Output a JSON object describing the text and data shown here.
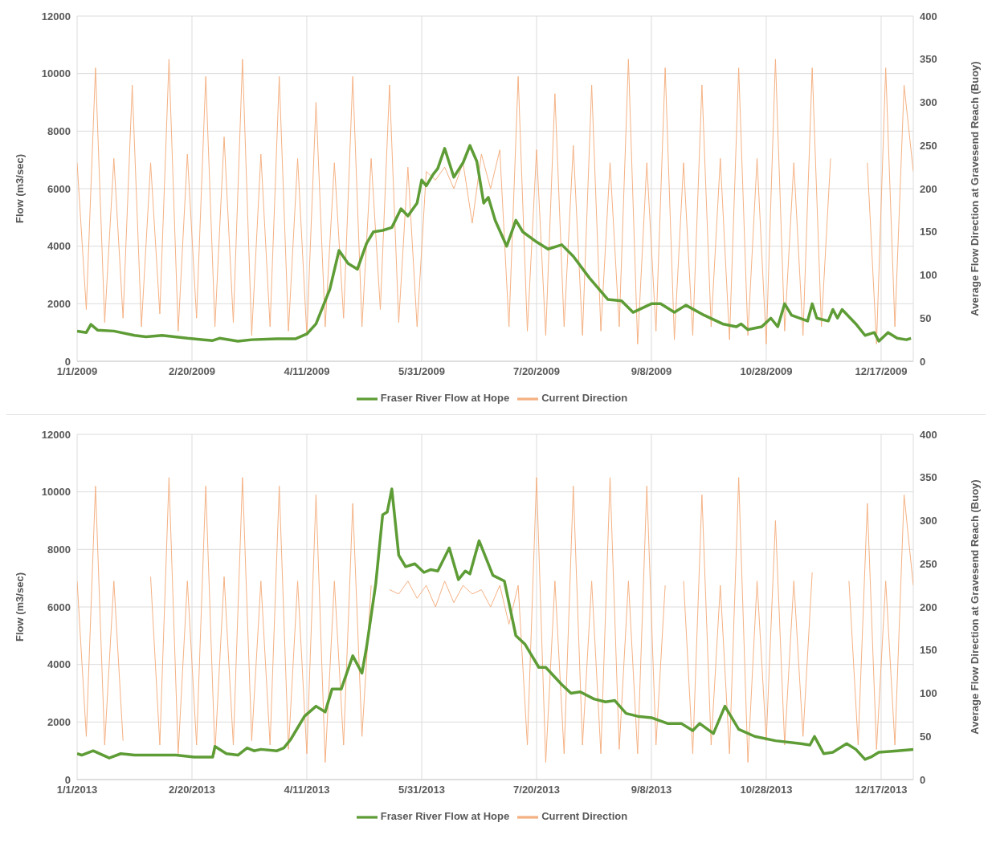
{
  "chart_data": [
    {
      "type": "line",
      "xlabel": null,
      "ylabel": "Flow (m3/sec)",
      "y2label": "Average Flow Direction at Gravesend Reach (Buoy)",
      "xlim": [
        "2009-01-01",
        "2009-12-31"
      ],
      "xticks": [
        {
          "value": "2009-01-01",
          "label": "1/1/2009"
        },
        {
          "value": "2009-02-20",
          "label": "2/20/2009"
        },
        {
          "value": "2009-04-11",
          "label": "4/11/2009"
        },
        {
          "value": "2009-05-31",
          "label": "5/31/2009"
        },
        {
          "value": "2009-07-20",
          "label": "7/20/2009"
        },
        {
          "value": "2009-09-08",
          "label": "9/8/2009"
        },
        {
          "value": "2009-10-28",
          "label": "10/28/2009"
        },
        {
          "value": "2009-12-17",
          "label": "12/17/2009"
        }
      ],
      "ylim": [
        0,
        12000
      ],
      "yticks": [
        0,
        2000,
        4000,
        6000,
        8000,
        10000,
        12000
      ],
      "y2lim": [
        0,
        400
      ],
      "y2ticks": [
        0,
        50,
        100,
        150,
        200,
        250,
        300,
        350,
        400
      ],
      "grid": true,
      "legend": "bottom",
      "series": [
        {
          "name": "Fraser River Flow at Hope",
          "color": "#5e9c36",
          "x": [
            "2009-01-01",
            "2009-01-05",
            "2009-01-07",
            "2009-01-10",
            "2009-01-17",
            "2009-01-26",
            "2009-01-31",
            "2009-02-07",
            "2009-02-18",
            "2009-03-01",
            "2009-03-04",
            "2009-03-12",
            "2009-03-18",
            "2009-03-29",
            "2009-04-06",
            "2009-04-11",
            "2009-04-15",
            "2009-04-21",
            "2009-04-25",
            "2009-04-29",
            "2009-05-03",
            "2009-05-07",
            "2009-05-10",
            "2009-05-14",
            "2009-05-18",
            "2009-05-22",
            "2009-05-25",
            "2009-05-29",
            "2009-05-31",
            "2009-06-02",
            "2009-06-05",
            "2009-06-07",
            "2009-06-10",
            "2009-06-14",
            "2009-06-18",
            "2009-06-21",
            "2009-06-24",
            "2009-06-27",
            "2009-06-29",
            "2009-07-02",
            "2009-07-07",
            "2009-07-11",
            "2009-07-14",
            "2009-07-20",
            "2009-07-25",
            "2009-07-31",
            "2009-08-05",
            "2009-08-12",
            "2009-08-20",
            "2009-08-26",
            "2009-08-31",
            "2009-09-08",
            "2009-09-12",
            "2009-09-18",
            "2009-09-23",
            "2009-10-01",
            "2009-10-09",
            "2009-10-15",
            "2009-10-17",
            "2009-10-20",
            "2009-10-26",
            "2009-10-30",
            "2009-11-02",
            "2009-11-05",
            "2009-11-08",
            "2009-11-15",
            "2009-11-17",
            "2009-11-19",
            "2009-11-24",
            "2009-11-26",
            "2009-11-28",
            "2009-11-30",
            "2009-12-06",
            "2009-12-10",
            "2009-12-14",
            "2009-12-16",
            "2009-12-20",
            "2009-12-24",
            "2009-12-28",
            "2009-12-30"
          ],
          "values": [
            1050,
            1000,
            1280,
            1080,
            1050,
            900,
            850,
            900,
            800,
            720,
            800,
            700,
            750,
            780,
            780,
            950,
            1300,
            2500,
            3850,
            3400,
            3200,
            4100,
            4500,
            4550,
            4650,
            5300,
            5050,
            5500,
            6300,
            6100,
            6500,
            6700,
            7400,
            6400,
            6900,
            7500,
            6950,
            5500,
            5700,
            4900,
            4000,
            4900,
            4500,
            4150,
            3900,
            4050,
            3650,
            2900,
            2150,
            2100,
            1700,
            2000,
            2000,
            1700,
            1950,
            1600,
            1300,
            1200,
            1300,
            1100,
            1200,
            1500,
            1200,
            2000,
            1600,
            1400,
            2000,
            1500,
            1400,
            1800,
            1500,
            1800,
            1300,
            900,
            1000,
            700,
            1000,
            800,
            750,
            800
          ]
        },
        {
          "name": "Current Direction",
          "color": "#f4b183",
          "axis": "y2",
          "x": [
            "2009-01-01",
            "2009-01-05",
            "2009-01-09",
            "2009-01-13",
            "2009-01-17",
            "2009-01-21",
            "2009-01-25",
            "2009-01-29",
            "2009-02-02",
            "2009-02-06",
            "2009-02-10",
            "2009-02-14",
            "2009-02-18",
            "2009-02-22",
            "2009-02-26",
            "2009-03-02",
            "2009-03-06",
            "2009-03-10",
            "2009-03-14",
            "2009-03-18",
            "2009-03-22",
            "2009-03-26",
            "2009-03-30",
            "2009-04-03",
            "2009-04-07",
            "2009-04-11",
            "2009-04-15",
            "2009-04-19",
            "2009-04-23",
            "2009-04-27",
            "2009-05-01",
            "2009-05-05",
            "2009-05-09",
            "2009-05-13",
            "2009-05-17",
            "2009-05-21",
            "2009-05-25",
            "2009-05-29",
            "2009-06-02",
            "2009-06-06",
            "2009-06-10",
            "2009-06-14",
            "2009-06-18",
            "2009-06-22",
            "2009-06-26",
            "2009-06-30",
            "2009-07-04",
            "2009-07-08",
            "2009-07-12",
            "2009-07-16",
            "2009-07-20",
            "2009-07-24",
            "2009-07-28",
            "2009-08-01",
            "2009-08-05",
            "2009-08-09",
            "2009-08-13",
            "2009-08-17",
            "2009-08-21",
            "2009-08-25",
            "2009-08-29",
            "2009-09-02",
            "2009-09-06",
            "2009-09-10",
            "2009-09-14",
            "2009-09-18",
            "2009-09-22",
            "2009-09-26",
            "2009-09-30",
            "2009-10-04",
            "2009-10-08",
            "2009-10-12",
            "2009-10-16",
            "2009-10-20",
            "2009-10-24",
            "2009-10-28",
            "2009-11-01",
            "2009-11-05",
            "2009-11-09",
            "2009-11-13",
            "2009-11-17",
            "2009-11-21",
            "2009-11-25",
            "2009-11-29",
            "2009-12-03",
            "2009-12-07",
            "2009-12-11",
            "2009-12-15",
            "2009-12-19",
            "2009-12-23",
            "2009-12-27",
            "2009-12-31"
          ],
          "values": [
            230,
            60,
            340,
            45,
            235,
            50,
            320,
            40,
            230,
            55,
            350,
            35,
            240,
            50,
            330,
            40,
            260,
            45,
            350,
            30,
            240,
            40,
            330,
            35,
            235,
            30,
            300,
            40,
            230,
            50,
            330,
            40,
            235,
            60,
            320,
            45,
            225,
            40,
            220,
            210,
            225,
            200,
            230,
            160,
            240,
            200,
            245,
            40,
            330,
            35,
            245,
            30,
            310,
            40,
            250,
            30,
            320,
            35,
            230,
            40,
            350,
            20,
            230,
            35,
            340,
            25,
            230,
            30,
            320,
            40,
            235,
            25,
            340,
            30,
            235,
            20,
            350,
            35,
            230,
            30,
            340,
            40,
            235,
            null,
            null,
            null,
            230,
            20,
            340,
            40,
            320,
            220
          ]
        }
      ]
    },
    {
      "type": "line",
      "xlabel": null,
      "ylabel": "Flow (m3/sec)",
      "y2label": "Average Flow Direction at Gravesend Reach (Buoy)",
      "xlim": [
        "2013-01-01",
        "2013-12-31"
      ],
      "xticks": [
        {
          "value": "2013-01-01",
          "label": "1/1/2013"
        },
        {
          "value": "2013-02-20",
          "label": "2/20/2013"
        },
        {
          "value": "2013-04-11",
          "label": "4/11/2013"
        },
        {
          "value": "2013-05-31",
          "label": "5/31/2013"
        },
        {
          "value": "2013-07-20",
          "label": "7/20/2013"
        },
        {
          "value": "2013-09-08",
          "label": "9/8/2013"
        },
        {
          "value": "2013-10-28",
          "label": "10/28/2013"
        },
        {
          "value": "2013-12-17",
          "label": "12/17/2013"
        }
      ],
      "ylim": [
        0,
        12000
      ],
      "yticks": [
        0,
        2000,
        4000,
        6000,
        8000,
        10000,
        12000
      ],
      "y2lim": [
        0,
        400
      ],
      "y2ticks": [
        0,
        50,
        100,
        150,
        200,
        250,
        300,
        350,
        400
      ],
      "grid": true,
      "legend": "bottom",
      "series": [
        {
          "name": "Fraser River Flow at Hope",
          "color": "#5e9c36",
          "x": [
            "2013-01-01",
            "2013-01-03",
            "2013-01-08",
            "2013-01-15",
            "2013-01-20",
            "2013-01-26",
            "2013-02-04",
            "2013-02-13",
            "2013-02-21",
            "2013-03-01",
            "2013-03-02",
            "2013-03-07",
            "2013-03-12",
            "2013-03-16",
            "2013-03-19",
            "2013-03-22",
            "2013-03-29",
            "2013-04-01",
            "2013-04-04",
            "2013-04-07",
            "2013-04-10",
            "2013-04-15",
            "2013-04-19",
            "2013-04-22",
            "2013-04-26",
            "2013-05-01",
            "2013-05-05",
            "2013-05-07",
            "2013-05-11",
            "2013-05-14",
            "2013-05-16",
            "2013-05-18",
            "2013-05-21",
            "2013-05-24",
            "2013-05-28",
            "2013-06-01",
            "2013-06-04",
            "2013-06-07",
            "2013-06-12",
            "2013-06-16",
            "2013-06-19",
            "2013-06-21",
            "2013-06-25",
            "2013-06-28",
            "2013-07-01",
            "2013-07-06",
            "2013-07-11",
            "2013-07-15",
            "2013-07-21",
            "2013-07-24",
            "2013-07-31",
            "2013-08-04",
            "2013-08-08",
            "2013-08-14",
            "2013-08-19",
            "2013-08-23",
            "2013-08-28",
            "2013-09-02",
            "2013-09-08",
            "2013-09-15",
            "2013-09-21",
            "2013-09-26",
            "2013-09-29",
            "2013-10-05",
            "2013-10-10",
            "2013-10-16",
            "2013-10-23",
            "2013-11-01",
            "2013-11-12",
            "2013-11-16",
            "2013-11-18",
            "2013-11-22",
            "2013-11-26",
            "2013-12-02",
            "2013-12-06",
            "2013-12-10",
            "2013-12-13",
            "2013-12-16",
            "2013-12-24",
            "2013-12-31"
          ],
          "values": [
            900,
            850,
            1000,
            750,
            900,
            850,
            850,
            850,
            780,
            780,
            1150,
            900,
            850,
            1100,
            1000,
            1050,
            1000,
            1100,
            1400,
            1800,
            2200,
            2550,
            2350,
            3150,
            3150,
            4300,
            3700,
            4600,
            6800,
            9200,
            9300,
            10100,
            7800,
            7400,
            7500,
            7200,
            7300,
            7250,
            8050,
            6950,
            7250,
            7150,
            8300,
            7700,
            7100,
            6900,
            5000,
            4700,
            3900,
            3900,
            3300,
            3000,
            3050,
            2800,
            2700,
            2750,
            2300,
            2200,
            2150,
            1950,
            1950,
            1700,
            1950,
            1600,
            2550,
            1750,
            1500,
            1350,
            1250,
            1200,
            1500,
            900,
            950,
            1250,
            1050,
            700,
            800,
            950,
            1000,
            1050
          ]
        },
        {
          "name": "Current Direction",
          "color": "#f4b183",
          "axis": "y2",
          "x": [
            "2013-01-01",
            "2013-01-05",
            "2013-01-09",
            "2013-01-13",
            "2013-01-17",
            "2013-01-21",
            "2013-01-25",
            "2013-01-29",
            "2013-02-02",
            "2013-02-06",
            "2013-02-10",
            "2013-02-14",
            "2013-02-18",
            "2013-02-22",
            "2013-02-26",
            "2013-03-02",
            "2013-03-06",
            "2013-03-10",
            "2013-03-14",
            "2013-03-18",
            "2013-03-22",
            "2013-03-26",
            "2013-03-30",
            "2013-04-03",
            "2013-04-07",
            "2013-04-11",
            "2013-04-15",
            "2013-04-19",
            "2013-04-23",
            "2013-04-27",
            "2013-05-01",
            "2013-05-05",
            "2013-05-09",
            "2013-05-13",
            "2013-05-17",
            "2013-05-21",
            "2013-05-25",
            "2013-05-29",
            "2013-06-02",
            "2013-06-06",
            "2013-06-10",
            "2013-06-14",
            "2013-06-18",
            "2013-06-22",
            "2013-06-26",
            "2013-06-30",
            "2013-07-04",
            "2013-07-08",
            "2013-07-12",
            "2013-07-16",
            "2013-07-20",
            "2013-07-24",
            "2013-07-28",
            "2013-08-01",
            "2013-08-05",
            "2013-08-09",
            "2013-08-13",
            "2013-08-17",
            "2013-08-21",
            "2013-08-25",
            "2013-08-29",
            "2013-09-02",
            "2013-09-06",
            "2013-09-10",
            "2013-09-14",
            "2013-09-18",
            "2013-09-22",
            "2013-09-26",
            "2013-09-30",
            "2013-10-04",
            "2013-10-08",
            "2013-10-12",
            "2013-10-16",
            "2013-10-20",
            "2013-10-24",
            "2013-10-28",
            "2013-11-01",
            "2013-11-05",
            "2013-11-09",
            "2013-11-13",
            "2013-11-17",
            "2013-11-21",
            "2013-11-25",
            "2013-11-29",
            "2013-12-03",
            "2013-12-07",
            "2013-12-11",
            "2013-12-15",
            "2013-12-19",
            "2013-12-23",
            "2013-12-27",
            "2013-12-31"
          ],
          "values": [
            230,
            50,
            340,
            40,
            230,
            45,
            null,
            null,
            235,
            40,
            350,
            30,
            230,
            40,
            340,
            30,
            235,
            40,
            350,
            45,
            230,
            40,
            340,
            35,
            230,
            30,
            330,
            20,
            230,
            40,
            320,
            50,
            225,
            null,
            220,
            215,
            230,
            210,
            225,
            200,
            230,
            205,
            225,
            215,
            220,
            200,
            225,
            180,
            225,
            40,
            350,
            20,
            230,
            30,
            340,
            40,
            230,
            30,
            350,
            35,
            230,
            30,
            340,
            40,
            225,
            null,
            230,
            30,
            330,
            40,
            225,
            30,
            350,
            20,
            230,
            45,
            300,
            40,
            230,
            50,
            240,
            null,
            null,
            null,
            230,
            40,
            320,
            35,
            230,
            40,
            330,
            225
          ]
        }
      ]
    }
  ]
}
